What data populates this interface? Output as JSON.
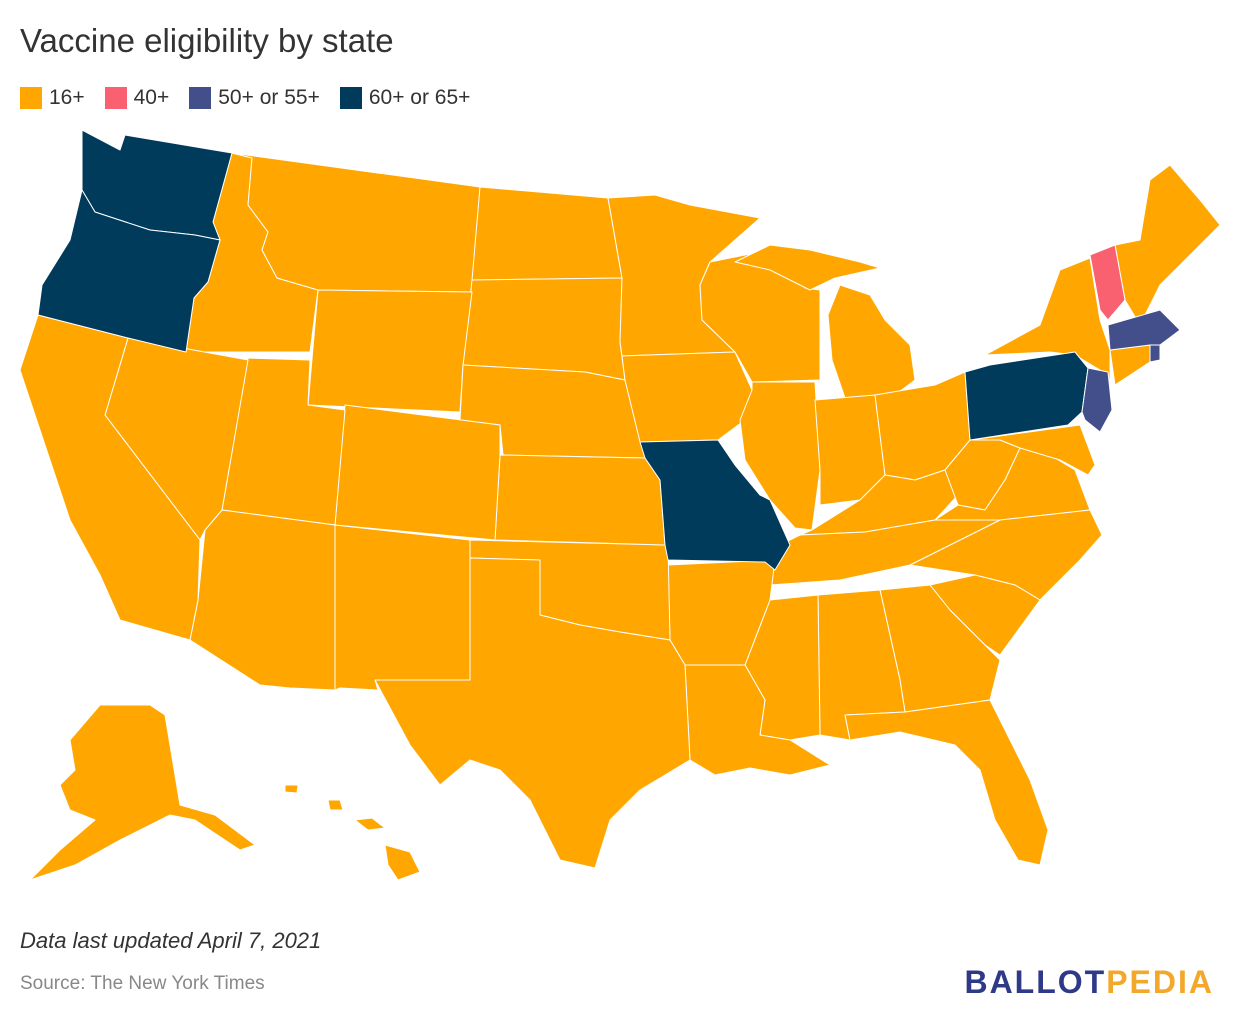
{
  "title": "Vaccine eligibility by state",
  "legend": [
    {
      "label": "16+",
      "color": "#FFA600"
    },
    {
      "label": "40+",
      "color": "#FA6170"
    },
    {
      "label": "50+ or 55+",
      "color": "#434F8B"
    },
    {
      "label": "60+ or 65+",
      "color": "#003B5C"
    }
  ],
  "note": "Data last updated April 7, 2021",
  "source": "Source: The New York Times",
  "brand": {
    "part1": "BALLOT",
    "part2": "PEDIA"
  },
  "map_data": {
    "type": "choropleth",
    "region": "United States",
    "categories": [
      "16+",
      "40+",
      "50+ or 55+",
      "60+ or 65+"
    ],
    "highlighted": [
      {
        "state": "Washington",
        "category": "60+ or 65+"
      },
      {
        "state": "Oregon",
        "category": "60+ or 65+"
      },
      {
        "state": "Missouri",
        "category": "60+ or 65+"
      },
      {
        "state": "Pennsylvania",
        "category": "60+ or 65+"
      },
      {
        "state": "Vermont",
        "category": "40+"
      },
      {
        "state": "Massachusetts",
        "category": "50+ or 55+"
      },
      {
        "state": "Rhode Island",
        "category": "50+ or 55+"
      },
      {
        "state": "New Jersey",
        "category": "50+ or 55+"
      }
    ],
    "default_category": "16+"
  }
}
